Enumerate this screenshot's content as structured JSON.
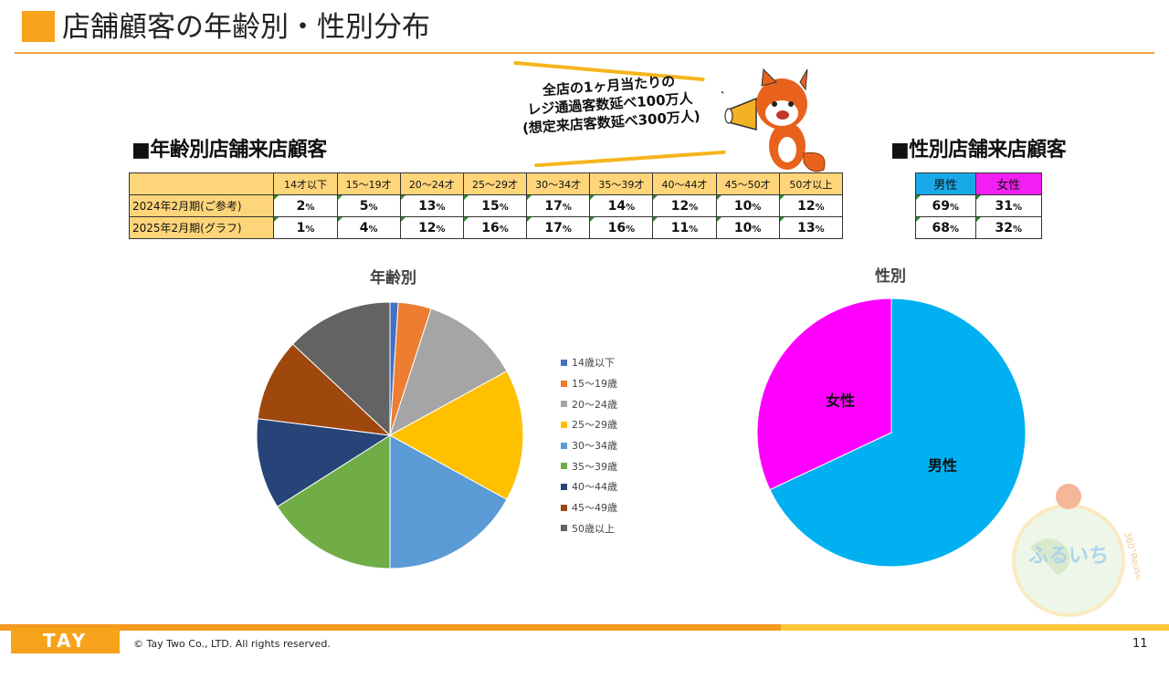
{
  "page": {
    "title": "店舗顧客の年齢別・性別分布",
    "number": "11",
    "copyright": "© Tay Two Co., LTD. All rights reserved.",
    "logo_text": "TAY TWO"
  },
  "callout": {
    "lines": [
      "全店の1ヶ月当たりの",
      "レジ通過客数延べ100万人",
      "(想定来店客数延べ300万人)"
    ],
    "character_icon": "red-panda-megaphone-icon"
  },
  "age_table": {
    "heading": "■年齢別店舗来店顧客",
    "columns": [
      "14才以下",
      "15〜19才",
      "20〜24才",
      "25〜29才",
      "30〜34才",
      "35〜39才",
      "40〜44才",
      "45〜50才",
      "50才以上"
    ],
    "rows": [
      {
        "label": "2024年2月期(ご参考)",
        "values": [
          "2",
          "5",
          "13",
          "15",
          "17",
          "14",
          "12",
          "10",
          "12"
        ]
      },
      {
        "label": "2025年2月期(グラフ)",
        "values": [
          "1",
          "4",
          "12",
          "16",
          "17",
          "16",
          "11",
          "10",
          "13"
        ]
      }
    ],
    "unit": "%"
  },
  "gender_table": {
    "heading": "■性別店舗来店顧客",
    "columns": [
      "男性",
      "女性"
    ],
    "header_colors": [
      "#1aa9e8",
      "#f21ff2"
    ],
    "rows": [
      {
        "values": [
          "69",
          "31"
        ]
      },
      {
        "values": [
          "68",
          "32"
        ]
      }
    ],
    "unit": "%"
  },
  "chart_data": [
    {
      "type": "pie",
      "title": "年齢別",
      "categories": [
        "14歳以下",
        "15〜19歳",
        "20〜24歳",
        "25〜29歳",
        "30〜34歳",
        "35〜39歳",
        "40〜44歳",
        "45〜49歳",
        "50歳以上"
      ],
      "values": [
        1,
        4,
        12,
        16,
        17,
        16,
        11,
        10,
        13
      ],
      "colors": [
        "#4472c4",
        "#ed7d31",
        "#a5a5a5",
        "#ffc000",
        "#5b9bd5",
        "#70ad47",
        "#264478",
        "#9e480e",
        "#636363"
      ],
      "legend": "right"
    },
    {
      "type": "pie",
      "title": "性別",
      "categories": [
        "男性",
        "女性"
      ],
      "values": [
        68,
        32
      ],
      "colors": [
        "#00b0f0",
        "#ff00ff"
      ],
      "legend": "none"
    }
  ],
  "watermark": {
    "text": "ふるいち",
    "subtext": "360°Reuse"
  }
}
